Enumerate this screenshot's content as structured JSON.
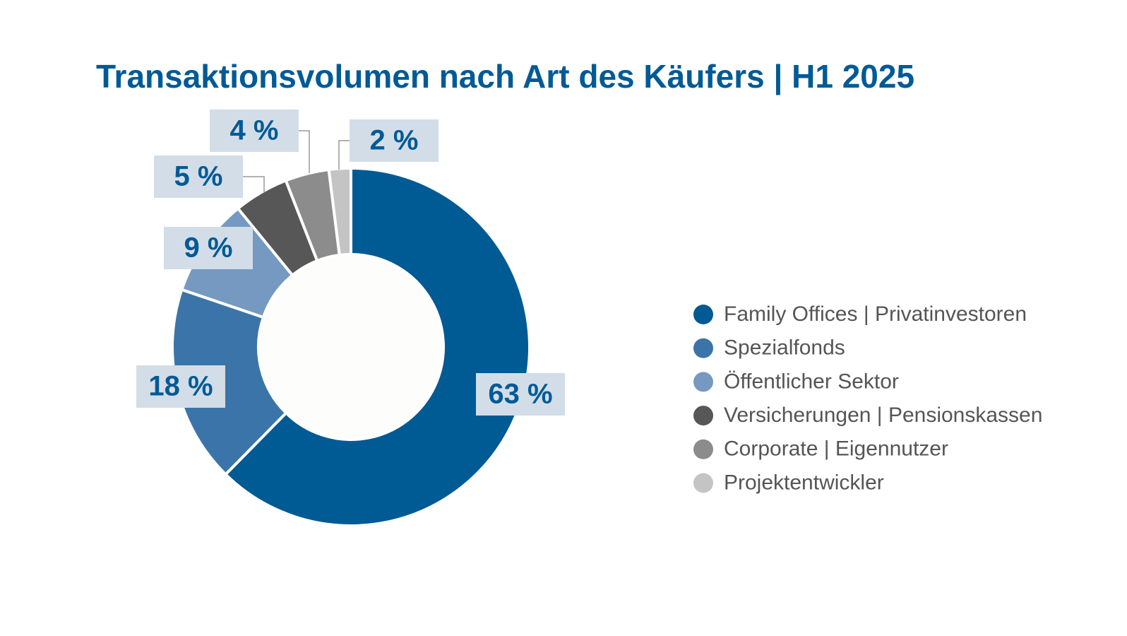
{
  "chart_data": {
    "type": "donut",
    "title": "Transaktionsvolumen nach Art des Käufers | H1 2025",
    "categories": [
      "Family Offices | Privatinvestoren",
      "Spezialfonds",
      "Öffentlicher Sektor",
      "Versicherungen | Pensionskassen",
      "Corporate | Eigennutzer",
      "Projektentwickler"
    ],
    "values": [
      63,
      18,
      9,
      5,
      4,
      2
    ],
    "value_labels": [
      "63 %",
      "18 %",
      "9 %",
      "5 %",
      "4 %",
      "2 %"
    ],
    "colors": [
      "#005a94",
      "#3b74a8",
      "#7599c0",
      "#575757",
      "#8c8c8c",
      "#c4c4c4"
    ],
    "legend": "right"
  }
}
